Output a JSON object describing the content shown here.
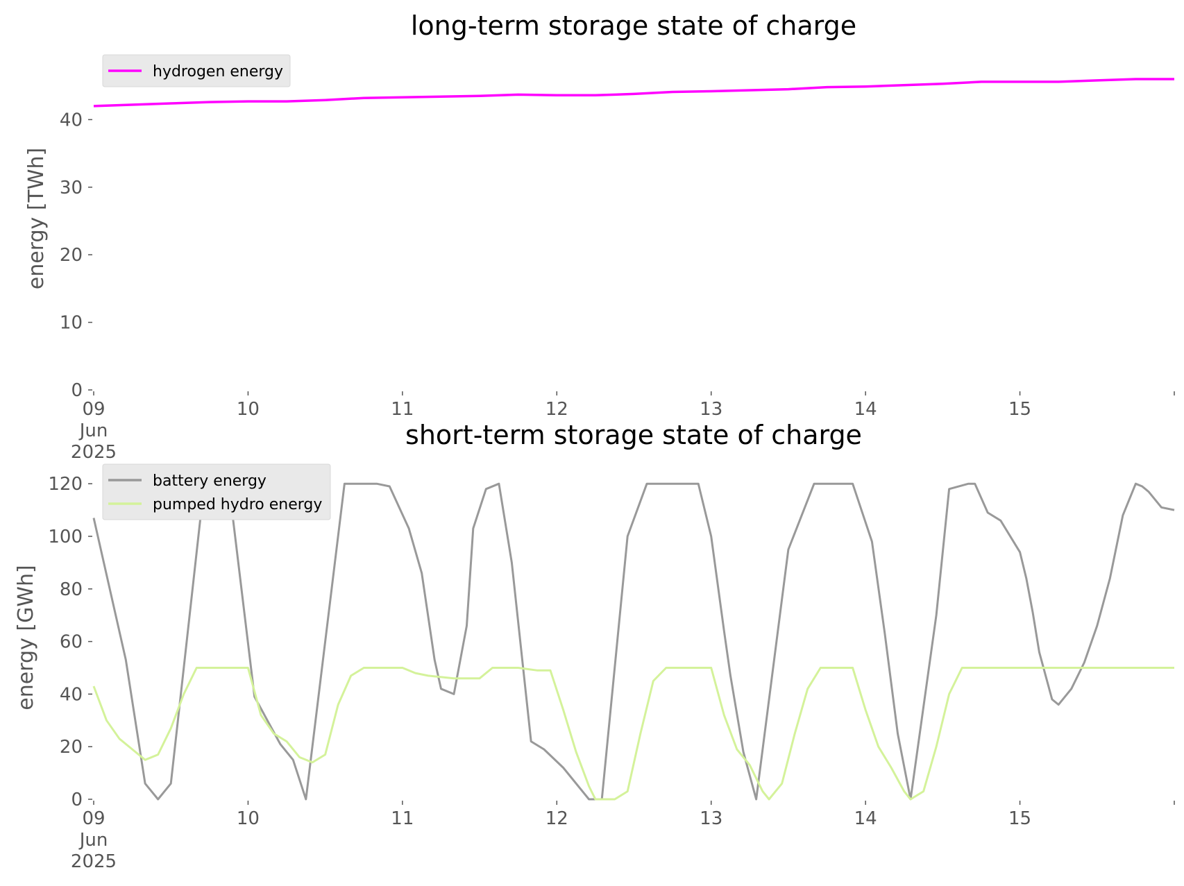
{
  "chart_data": [
    {
      "type": "line",
      "title": "long-term storage state of charge",
      "ylabel": "energy [TWh]",
      "xlabel": "",
      "ylim": [
        0,
        50
      ],
      "yticks": [
        "0",
        "10",
        "20",
        "30",
        "40"
      ],
      "xticks": [
        "09\nJun\n2025",
        "10",
        "11",
        "12",
        "13",
        "14",
        "15"
      ],
      "xlim": [
        "2025-06-09T00:00",
        "2025-06-16T00:00"
      ],
      "legend_loc": "upper-left",
      "grid": false,
      "series": [
        {
          "name": "hydrogen energy",
          "color": "#ff00ff",
          "x": [
            "2025-06-09T00:00",
            "2025-06-09T12:00",
            "2025-06-09T18:00",
            "2025-06-10T00:00",
            "2025-06-10T06:00",
            "2025-06-10T12:00",
            "2025-06-10T18:00",
            "2025-06-11T00:00",
            "2025-06-11T12:00",
            "2025-06-11T18:00",
            "2025-06-12T00:00",
            "2025-06-12T06:00",
            "2025-06-12T12:00",
            "2025-06-12T18:00",
            "2025-06-13T00:00",
            "2025-06-13T12:00",
            "2025-06-13T18:00",
            "2025-06-14T00:00",
            "2025-06-14T12:00",
            "2025-06-14T18:00",
            "2025-06-15T00:00",
            "2025-06-15T06:00",
            "2025-06-15T12:00",
            "2025-06-15T18:00",
            "2025-06-16T00:00"
          ],
          "values": [
            42.0,
            42.4,
            42.6,
            42.7,
            42.7,
            42.9,
            43.2,
            43.3,
            43.5,
            43.7,
            43.6,
            43.6,
            43.8,
            44.1,
            44.2,
            44.5,
            44.8,
            44.9,
            45.3,
            45.6,
            45.6,
            45.6,
            45.8,
            46.0,
            46.0
          ]
        }
      ]
    },
    {
      "type": "line",
      "title": "short-term storage state of charge",
      "ylabel": "energy [GWh]",
      "xlabel": "",
      "ylim": [
        0,
        120
      ],
      "yticks": [
        "0",
        "20",
        "40",
        "60",
        "80",
        "100",
        "120"
      ],
      "xticks": [
        "09\nJun\n2025",
        "10",
        "11",
        "12",
        "13",
        "14",
        "15"
      ],
      "xlim": [
        "2025-06-09T00:00",
        "2025-06-16T00:00"
      ],
      "legend_loc": "upper-left",
      "grid": false,
      "series": [
        {
          "name": "battery energy",
          "color": "#999999",
          "x": [
            "2025-06-09T00:00",
            "2025-06-09T05:00",
            "2025-06-09T08:00",
            "2025-06-09T10:00",
            "2025-06-09T12:00",
            "2025-06-09T14:00",
            "2025-06-09T17:00",
            "2025-06-09T21:00",
            "2025-06-10T01:00",
            "2025-06-10T05:00",
            "2025-06-10T07:00",
            "2025-06-10T09:00",
            "2025-06-10T15:00",
            "2025-06-10T18:00",
            "2025-06-10T20:00",
            "2025-06-10T22:00",
            "2025-06-11T01:00",
            "2025-06-11T03:00",
            "2025-06-11T05:00",
            "2025-06-11T06:00",
            "2025-06-11T08:00",
            "2025-06-11T10:00",
            "2025-06-11T11:00",
            "2025-06-11T13:00",
            "2025-06-11T15:00",
            "2025-06-11T17:00",
            "2025-06-11T20:00",
            "2025-06-11T22:00",
            "2025-06-12T01:00",
            "2025-06-12T05:00",
            "2025-06-12T07:00",
            "2025-06-12T11:00",
            "2025-06-12T14:00",
            "2025-06-12T18:00",
            "2025-06-12T22:00",
            "2025-06-13T00:00",
            "2025-06-13T02:00",
            "2025-06-13T03:00",
            "2025-06-13T05:00",
            "2025-06-13T07:00",
            "2025-06-13T12:00",
            "2025-06-13T16:00",
            "2025-06-13T18:00",
            "2025-06-13T22:00",
            "2025-06-14T01:00",
            "2025-06-14T03:00",
            "2025-06-14T05:00",
            "2025-06-14T07:00",
            "2025-06-14T11:00",
            "2025-06-14T13:00",
            "2025-06-14T16:00",
            "2025-06-14T17:00",
            "2025-06-14T19:00",
            "2025-06-14T21:00",
            "2025-06-15T00:00",
            "2025-06-15T01:00",
            "2025-06-15T02:00",
            "2025-06-15T03:00",
            "2025-06-15T05:00",
            "2025-06-15T06:00",
            "2025-06-15T08:00",
            "2025-06-15T10:00",
            "2025-06-15T12:00",
            "2025-06-15T14:00",
            "2025-06-15T16:00",
            "2025-06-15T18:00",
            "2025-06-15T19:00",
            "2025-06-15T20:00",
            "2025-06-15T22:00",
            "2025-06-16T00:00"
          ],
          "values": [
            107,
            53,
            6,
            0,
            6,
            50,
            116,
            120,
            39,
            21,
            15,
            0,
            120,
            120,
            120,
            119,
            103,
            86,
            53,
            42,
            40,
            66,
            103,
            118,
            120,
            90,
            22,
            19,
            12,
            0,
            0,
            100,
            120,
            120,
            120,
            100,
            64,
            47,
            18,
            0,
            95,
            120,
            120,
            120,
            98,
            63,
            25,
            0,
            70,
            118,
            120,
            120,
            109,
            106,
            94,
            84,
            71,
            56,
            38,
            36,
            42,
            52,
            66,
            84,
            108,
            120,
            119,
            117,
            111,
            110
          ]
        },
        {
          "name": "pumped hydro energy",
          "color": "#d4f29a",
          "x": [
            "2025-06-09T00:00",
            "2025-06-09T02:00",
            "2025-06-09T04:00",
            "2025-06-09T06:00",
            "2025-06-09T08:00",
            "2025-06-09T10:00",
            "2025-06-09T12:00",
            "2025-06-09T14:00",
            "2025-06-09T16:00",
            "2025-06-09T18:00",
            "2025-06-09T20:00",
            "2025-06-10T00:00",
            "2025-06-10T02:00",
            "2025-06-10T04:00",
            "2025-06-10T06:00",
            "2025-06-10T08:00",
            "2025-06-10T10:00",
            "2025-06-10T12:00",
            "2025-06-10T14:00",
            "2025-06-10T16:00",
            "2025-06-10T18:00",
            "2025-06-10T20:00",
            "2025-06-11T00:00",
            "2025-06-11T02:00",
            "2025-06-11T04:00",
            "2025-06-11T08:00",
            "2025-06-11T12:00",
            "2025-06-11T14:00",
            "2025-06-11T16:00",
            "2025-06-11T18:00",
            "2025-06-11T21:00",
            "2025-06-11T23:00",
            "2025-06-12T01:00",
            "2025-06-12T03:00",
            "2025-06-12T05:00",
            "2025-06-12T06:00",
            "2025-06-12T09:00",
            "2025-06-12T11:00",
            "2025-06-12T13:00",
            "2025-06-12T15:00",
            "2025-06-12T17:00",
            "2025-06-12T19:00",
            "2025-06-13T00:00",
            "2025-06-13T02:00",
            "2025-06-13T04:00",
            "2025-06-13T06:00",
            "2025-06-13T08:00",
            "2025-06-13T09:00",
            "2025-06-13T11:00",
            "2025-06-13T13:00",
            "2025-06-13T15:00",
            "2025-06-13T17:00",
            "2025-06-13T19:00",
            "2025-06-13T22:00",
            "2025-06-14T00:00",
            "2025-06-14T02:00",
            "2025-06-14T04:00",
            "2025-06-14T06:00",
            "2025-06-14T07:00",
            "2025-06-14T09:00",
            "2025-06-14T11:00",
            "2025-06-14T13:00",
            "2025-06-14T15:00",
            "2025-06-14T17:00",
            "2025-06-15T00:00",
            "2025-06-15T12:00",
            "2025-06-16T00:00"
          ],
          "values": [
            43,
            30,
            23,
            19,
            15,
            17,
            27,
            40,
            50,
            50,
            50,
            50,
            32,
            25,
            22,
            16,
            14,
            17,
            36,
            47,
            50,
            50,
            50,
            48,
            47,
            46,
            46,
            50,
            50,
            50,
            49,
            49,
            34,
            18,
            5,
            0,
            0,
            3,
            25,
            45,
            50,
            50,
            50,
            32,
            19,
            13,
            3,
            0,
            6,
            25,
            42,
            50,
            50,
            50,
            34,
            20,
            12,
            3,
            0,
            3,
            20,
            40,
            50,
            50,
            50,
            50,
            50
          ]
        }
      ]
    }
  ]
}
